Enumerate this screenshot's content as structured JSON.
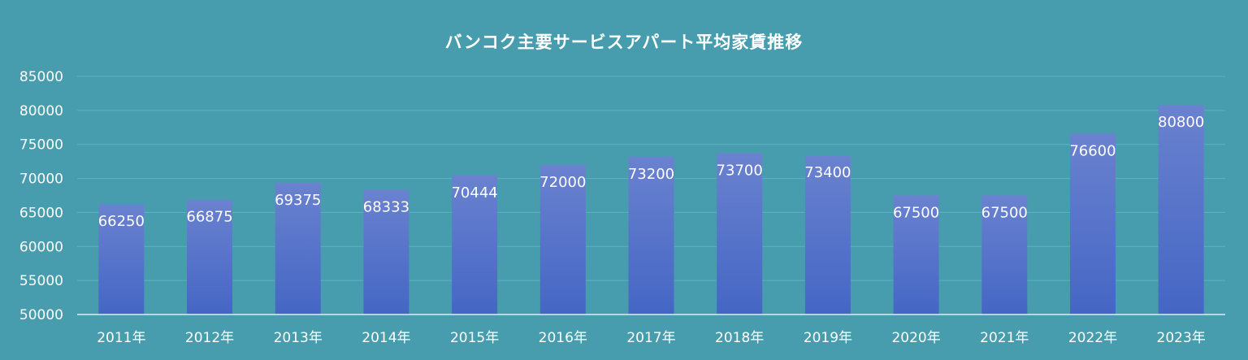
{
  "chart_data": {
    "type": "bar",
    "title": "バンコク主要サービスアパート平均家賃推移",
    "xlabel": "",
    "ylabel": "",
    "categories": [
      "2011年",
      "2012年",
      "2013年",
      "2014年",
      "2015年",
      "2016年",
      "2017年",
      "2018年",
      "2019年",
      "2020年",
      "2021年",
      "2022年",
      "2023年"
    ],
    "values": [
      66250,
      66875,
      69375,
      68333,
      70444,
      72000,
      73200,
      73700,
      73400,
      67500,
      67500,
      76600,
      80800
    ],
    "ylim": [
      50000,
      85000
    ],
    "yticks": [
      50000,
      55000,
      60000,
      65000,
      70000,
      75000,
      80000,
      85000
    ],
    "grid": true,
    "legend": "none",
    "colors": {
      "background": "#479dae",
      "bar_top": "#6a82cf",
      "bar_bottom": "#4466c4",
      "text": "#ffffff"
    }
  }
}
